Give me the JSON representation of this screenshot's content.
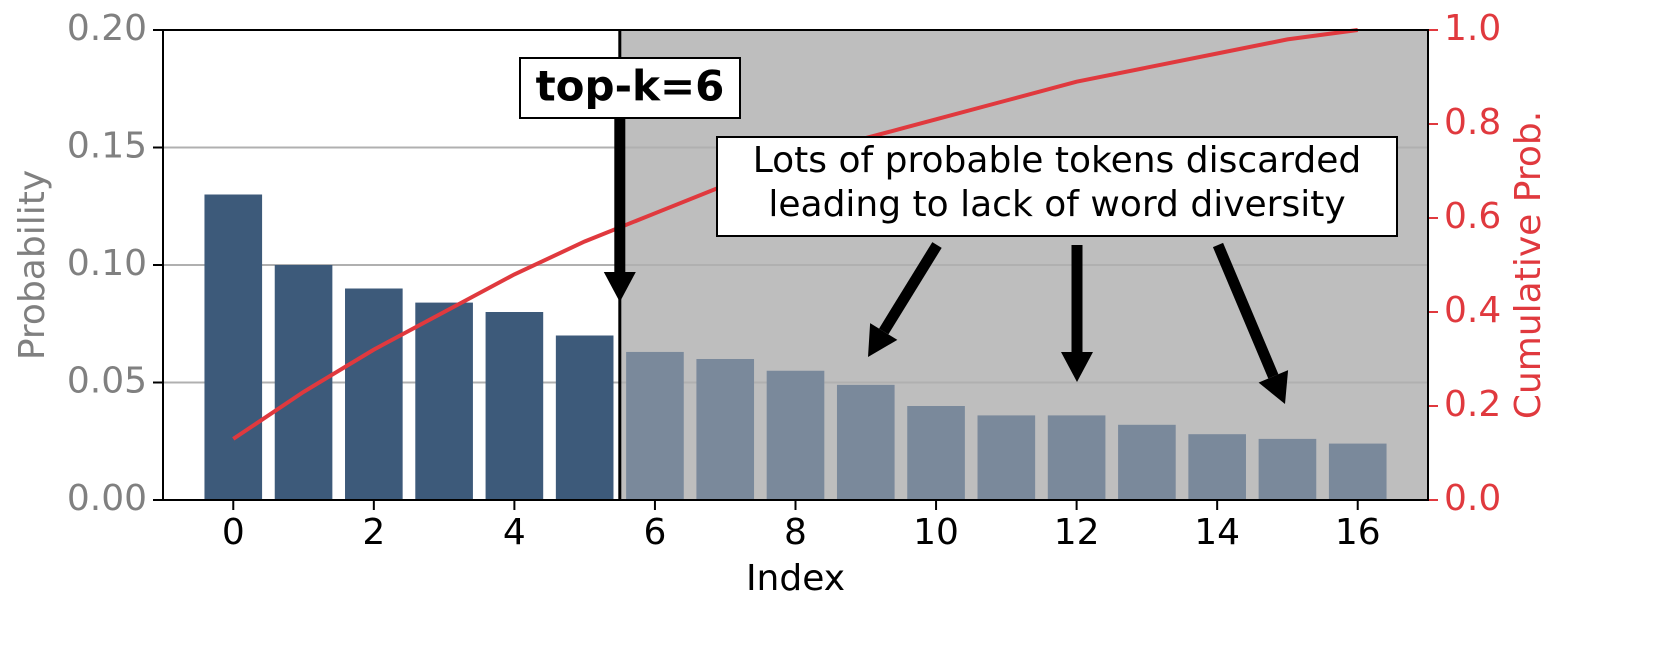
{
  "chart_data": {
    "type": "bar",
    "xlabel": "Index",
    "ylabel": "Probability",
    "y2label": "Cumulative Prob.",
    "x": [
      0,
      1,
      2,
      3,
      4,
      5,
      6,
      7,
      8,
      9,
      10,
      11,
      12,
      13,
      14,
      15,
      16
    ],
    "values": [
      0.13,
      0.1,
      0.09,
      0.084,
      0.08,
      0.07,
      0.063,
      0.06,
      0.055,
      0.049,
      0.04,
      0.036,
      0.036,
      0.032,
      0.028,
      0.026,
      0.024
    ],
    "colors": [
      "#3d5a7a",
      "#3d5a7a",
      "#3d5a7a",
      "#3d5a7a",
      "#3d5a7a",
      "#3d5a7a",
      "#7a899b",
      "#7a899b",
      "#7a899b",
      "#7a899b",
      "#7a899b",
      "#7a899b",
      "#7a899b",
      "#7a899b",
      "#7a899b",
      "#7a899b",
      "#7a899b"
    ],
    "cumulative": {
      "type": "line",
      "axis": "y2",
      "color": "#e0393e",
      "values": [
        0.13,
        0.23,
        0.32,
        0.4,
        0.48,
        0.55,
        0.61,
        0.67,
        0.72,
        0.77,
        0.81,
        0.85,
        0.89,
        0.92,
        0.95,
        0.98,
        1.0
      ]
    },
    "cutoff_x": 5.5,
    "shade_color": "#bebebe",
    "xlim": [
      -1,
      17
    ],
    "xticks": [
      0,
      2,
      4,
      6,
      8,
      10,
      12,
      14,
      16
    ],
    "ylim": [
      0,
      0.2
    ],
    "yticks": [
      {
        "value": 0,
        "label": "0.00"
      },
      {
        "value": 0.05,
        "label": "0.05"
      },
      {
        "value": 0.1,
        "label": "0.10"
      },
      {
        "value": 0.15,
        "label": "0.15"
      },
      {
        "value": 0.2,
        "label": "0.20"
      }
    ],
    "y2lim": [
      0,
      1
    ],
    "y2ticks": [
      {
        "value": 0,
        "label": "0.0"
      },
      {
        "value": 0.2,
        "label": "0.2"
      },
      {
        "value": 0.4,
        "label": "0.4"
      },
      {
        "value": 0.6,
        "label": "0.6"
      },
      {
        "value": 0.8,
        "label": "0.8"
      },
      {
        "value": 1,
        "label": "1.0"
      }
    ],
    "grid": true,
    "cutoff_label": "top-k=6",
    "note_lines": [
      "Lots of probable tokens discarded",
      "leading to lack of word diversity"
    ]
  }
}
